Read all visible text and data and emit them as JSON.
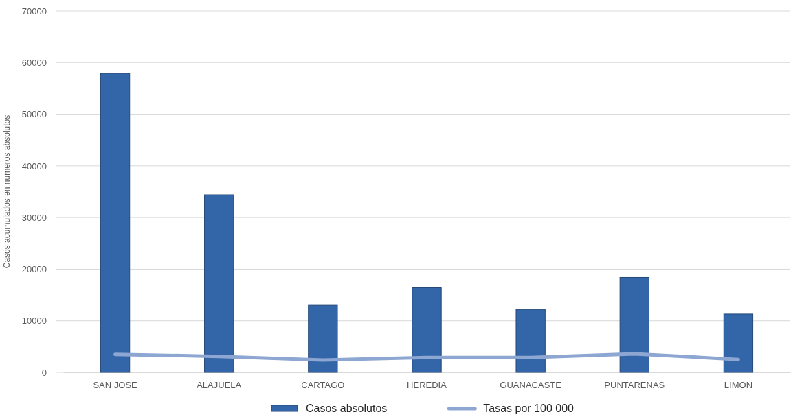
{
  "chart_data": {
    "type": "bar",
    "ylabel": "Casos acumulados en numeros absolutos",
    "categories": [
      "SAN JOSE",
      "ALAJUELA",
      "CARTAGO",
      "HEREDIA",
      "GUANACASTE",
      "PUNTARENAS",
      "LIMON"
    ],
    "series": [
      {
        "name": "Casos absolutos",
        "color": "#3366a8",
        "values": [
          57900,
          34400,
          13000,
          16400,
          12200,
          18400,
          11300
        ]
      },
      {
        "name": "Tasas por 100 000",
        "type": "line",
        "color": "#8ea6d2",
        "values": [
          3500,
          3100,
          2400,
          2900,
          2900,
          3600,
          2500
        ]
      }
    ],
    "ylim": [
      0,
      70000
    ],
    "yticks": [
      0,
      10000,
      20000,
      30000,
      40000,
      50000,
      60000,
      70000
    ],
    "grid": "y",
    "legend": "bottom",
    "marker": "none"
  }
}
